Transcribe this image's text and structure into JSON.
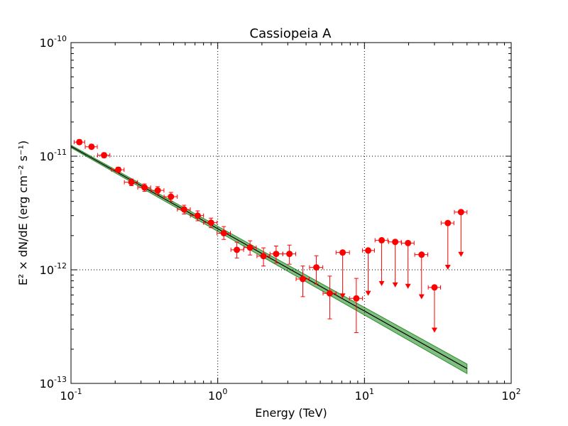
{
  "chart_data": {
    "type": "scatter",
    "title": "Cassiopeia A",
    "xlabel": "Energy (TeV)",
    "ylabel": "E² × dN/dE (erg cm⁻² s⁻¹)",
    "xscale": "log",
    "yscale": "log",
    "xlim": [
      0.1,
      100
    ],
    "ylim": [
      1e-13,
      1e-10
    ],
    "grid": true,
    "x_ticks": [
      {
        "value": 0.1,
        "base": "10",
        "exp": "-1"
      },
      {
        "value": 1,
        "base": "10",
        "exp": "0"
      },
      {
        "value": 10,
        "base": "10",
        "exp": "1"
      },
      {
        "value": 100,
        "base": "10",
        "exp": "2"
      }
    ],
    "y_ticks": [
      {
        "value": 1e-13,
        "base": "10",
        "exp": "-13"
      },
      {
        "value": 1e-12,
        "base": "10",
        "exp": "-12"
      },
      {
        "value": 1e-11,
        "base": "10",
        "exp": "-11"
      },
      {
        "value": 1e-10,
        "base": "10",
        "exp": "-10"
      }
    ],
    "points": [
      {
        "x": 0.114,
        "y": 1.33e-11,
        "xlo": 0.105,
        "xhi": 0.124,
        "ylo": 1.27e-11,
        "yhi": 1.4e-11
      },
      {
        "x": 0.138,
        "y": 1.21e-11,
        "xlo": 0.125,
        "xhi": 0.151,
        "ylo": 1.16e-11,
        "yhi": 1.27e-11
      },
      {
        "x": 0.168,
        "y": 1.02e-11,
        "xlo": 0.152,
        "xhi": 0.184,
        "ylo": 9.7e-12,
        "yhi": 1.07e-11
      },
      {
        "x": 0.21,
        "y": 7.6e-12,
        "xlo": 0.189,
        "xhi": 0.23,
        "ylo": 7.2e-12,
        "yhi": 8e-12
      },
      {
        "x": 0.258,
        "y": 5.9e-12,
        "xlo": 0.231,
        "xhi": 0.284,
        "ylo": 5.5e-12,
        "yhi": 6.3e-12
      },
      {
        "x": 0.317,
        "y": 5.3e-12,
        "xlo": 0.285,
        "xhi": 0.349,
        "ylo": 4.9e-12,
        "yhi": 5.7e-12
      },
      {
        "x": 0.39,
        "y": 5e-12,
        "xlo": 0.35,
        "xhi": 0.43,
        "ylo": 4.6e-12,
        "yhi": 5.4e-12
      },
      {
        "x": 0.48,
        "y": 4.4e-12,
        "xlo": 0.431,
        "xhi": 0.53,
        "ylo": 4e-12,
        "yhi": 4.8e-12
      },
      {
        "x": 0.59,
        "y": 3.4e-12,
        "xlo": 0.531,
        "xhi": 0.65,
        "ylo": 3.1e-12,
        "yhi": 3.7e-12
      },
      {
        "x": 0.73,
        "y": 3e-12,
        "xlo": 0.651,
        "xhi": 0.8,
        "ylo": 2.7e-12,
        "yhi": 3.3e-12
      },
      {
        "x": 0.9,
        "y": 2.6e-12,
        "xlo": 0.801,
        "xhi": 0.99,
        "ylo": 2.35e-12,
        "yhi": 2.85e-12
      },
      {
        "x": 1.1,
        "y": 2.1e-12,
        "xlo": 0.99,
        "xhi": 1.22,
        "ylo": 1.85e-12,
        "yhi": 2.4e-12
      },
      {
        "x": 1.35,
        "y": 1.5e-12,
        "xlo": 1.23,
        "xhi": 1.5,
        "ylo": 1.27e-12,
        "yhi": 1.75e-12
      },
      {
        "x": 1.66,
        "y": 1.57e-12,
        "xlo": 1.51,
        "xhi": 1.83,
        "ylo": 1.35e-12,
        "yhi": 1.8e-12
      },
      {
        "x": 2.05,
        "y": 1.32e-12,
        "xlo": 1.85,
        "xhi": 2.26,
        "ylo": 1.08e-12,
        "yhi": 1.56e-12
      },
      {
        "x": 2.5,
        "y": 1.38e-12,
        "xlo": 2.27,
        "xhi": 2.77,
        "ylo": 1.15e-12,
        "yhi": 1.62e-12
      },
      {
        "x": 3.08,
        "y": 1.38e-12,
        "xlo": 2.78,
        "xhi": 3.4,
        "ylo": 1.12e-12,
        "yhi": 1.65e-12
      },
      {
        "x": 3.8,
        "y": 8.3e-13,
        "xlo": 3.42,
        "xhi": 4.2,
        "ylo": 5.8e-13,
        "yhi": 1.08e-12
      },
      {
        "x": 4.7,
        "y": 1.05e-12,
        "xlo": 4.22,
        "xhi": 5.2,
        "ylo": 7.5e-13,
        "yhi": 1.33e-12
      },
      {
        "x": 5.8,
        "y": 6.2e-13,
        "xlo": 5.22,
        "xhi": 6.4,
        "ylo": 3.7e-13,
        "yhi": 8.8e-13
      },
      {
        "x": 8.8,
        "y": 5.6e-13,
        "xlo": 7.9,
        "xhi": 9.7,
        "ylo": 2.8e-13,
        "yhi": 8.4e-13
      }
    ],
    "upper_limits": [
      {
        "x": 7.1,
        "y": 1.42e-12,
        "xlo": 6.4,
        "xhi": 7.9,
        "arrow_to": 5.6e-13
      },
      {
        "x": 10.6,
        "y": 1.48e-12,
        "xlo": 9.7,
        "xhi": 11.7,
        "arrow_to": 5.9e-13
      },
      {
        "x": 13.1,
        "y": 1.82e-12,
        "xlo": 11.8,
        "xhi": 14.4,
        "arrow_to": 7.2e-13
      },
      {
        "x": 16.2,
        "y": 1.76e-12,
        "xlo": 14.6,
        "xhi": 17.8,
        "arrow_to": 7e-13
      },
      {
        "x": 19.8,
        "y": 1.72e-12,
        "xlo": 17.9,
        "xhi": 21.8,
        "arrow_to": 6.8e-13
      },
      {
        "x": 24.5,
        "y": 1.36e-12,
        "xlo": 22.0,
        "xhi": 27.0,
        "arrow_to": 5.5e-13
      },
      {
        "x": 30.0,
        "y": 7e-13,
        "xlo": 27.2,
        "xhi": 33.0,
        "arrow_to": 2.8e-13
      },
      {
        "x": 37.0,
        "y": 2.58e-12,
        "xlo": 33.3,
        "xhi": 40.7,
        "arrow_to": 1e-12
      },
      {
        "x": 45.5,
        "y": 3.22e-12,
        "xlo": 41.0,
        "xhi": 50.0,
        "arrow_to": 1.3e-12
      }
    ],
    "model": {
      "type": "power-law",
      "x_range": [
        0.1,
        50
      ],
      "y_at_x_range": [
        1.22e-11,
        1.35e-13
      ],
      "band_upper": [
        1.25e-11,
        1.48e-13
      ],
      "band_lower": [
        1.19e-11,
        1.22e-13
      ]
    },
    "colors": {
      "points": "#ff0000",
      "errorbars": "#ff0000",
      "model_line": "#000000",
      "band_fill": "#7fbf7f",
      "band_edge": "#2e8b2e",
      "grid": "#000000"
    }
  }
}
